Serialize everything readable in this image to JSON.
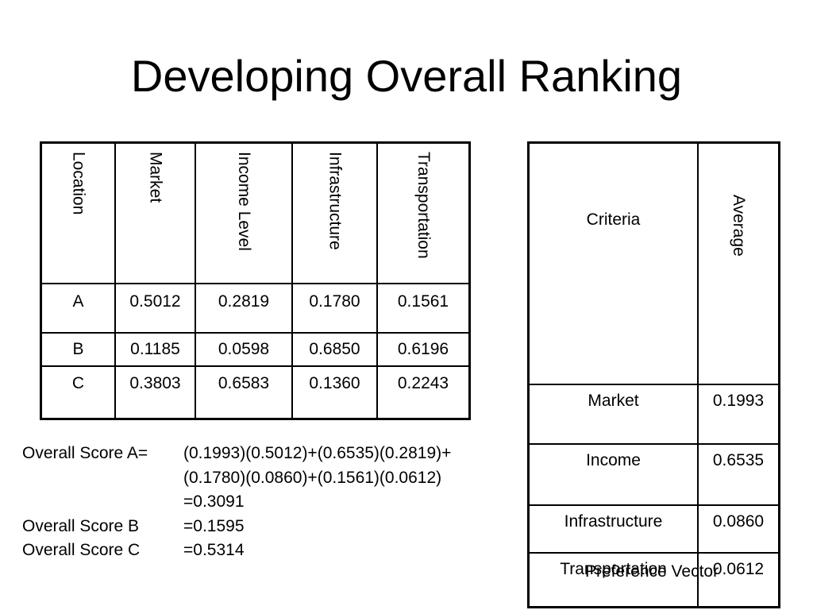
{
  "title": "Developing Overall Ranking",
  "location_table": {
    "headers": [
      "Location",
      "Market",
      "Income Level",
      "Infrastructure",
      "Transportation"
    ],
    "rows": [
      [
        "A",
        "0.5012",
        "0.2819",
        "0.1780",
        "0.1561"
      ],
      [
        "B",
        "0.1185",
        "0.0598",
        "0.6850",
        "0.6196"
      ],
      [
        "C",
        "0.3803",
        "0.6583",
        "0.1360",
        "0.2243"
      ]
    ]
  },
  "preference_table": {
    "headers": [
      "Criteria",
      "Average"
    ],
    "rows": [
      [
        "Market",
        "0.1993"
      ],
      [
        "Income",
        "0.6535"
      ],
      [
        "Infrastructure",
        "0.0860"
      ],
      [
        "Transportation",
        "0.0612"
      ]
    ],
    "caption": "Preference Vector"
  },
  "scores": [
    {
      "label": "Overall Score A=",
      "value": "(0.1993)(0.5012)+(0.6535)(0.2819)+"
    },
    {
      "label": "",
      "value": "(0.1780)(0.0860)+(0.1561)(0.0612)"
    },
    {
      "label": "",
      "value": "=0.3091"
    },
    {
      "label": "Overall Score B",
      "value": "=0.1595"
    },
    {
      "label": "Overall Score C",
      "value": "=0.5314"
    }
  ]
}
